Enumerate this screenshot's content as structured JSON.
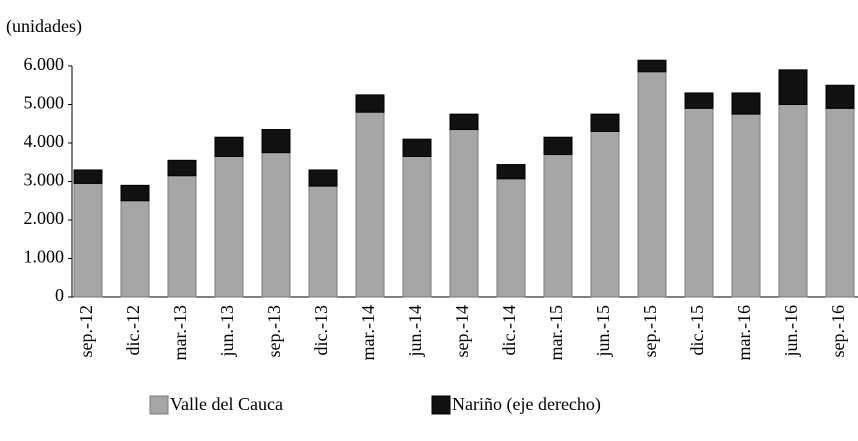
{
  "chart_data": {
    "type": "bar",
    "stacked": true,
    "unit": "(unidades)",
    "categories": [
      "sep.-12",
      "dic.-12",
      "mar.-13",
      "jun.-13",
      "sep.-13",
      "dic.-13",
      "mar.-14",
      "jun.-14",
      "sep.-14",
      "dic.-14",
      "mar.-15",
      "jun.-15",
      "sep.-15",
      "dic.-15",
      "mar.-16",
      "jun.-16",
      "sep.-16"
    ],
    "series": [
      {
        "name": "Valle del Cauca",
        "color": "#a6a6a6",
        "values": [
          2950,
          2500,
          3150,
          3650,
          3750,
          2880,
          4800,
          3650,
          4350,
          3070,
          3700,
          4300,
          5850,
          4900,
          4750,
          5000,
          4900
        ]
      },
      {
        "name": "Nariño (eje derecho)",
        "color": "#111111",
        "values": [
          350,
          400,
          400,
          500,
          600,
          420,
          450,
          450,
          400,
          370,
          450,
          450,
          300,
          400,
          550,
          900,
          600
        ]
      }
    ],
    "ylim": [
      0,
      6000
    ],
    "yticks": [
      0,
      {
        "value": 1000,
        "label": "1.000"
      },
      {
        "value": 2000,
        "label": "2.000"
      },
      {
        "value": 3000,
        "label": "3.000"
      },
      {
        "value": 4000,
        "label": "4.000"
      },
      {
        "value": 5000,
        "label": "5.000"
      },
      {
        "value": 6000,
        "label": "6.000"
      }
    ],
    "grid": false
  }
}
